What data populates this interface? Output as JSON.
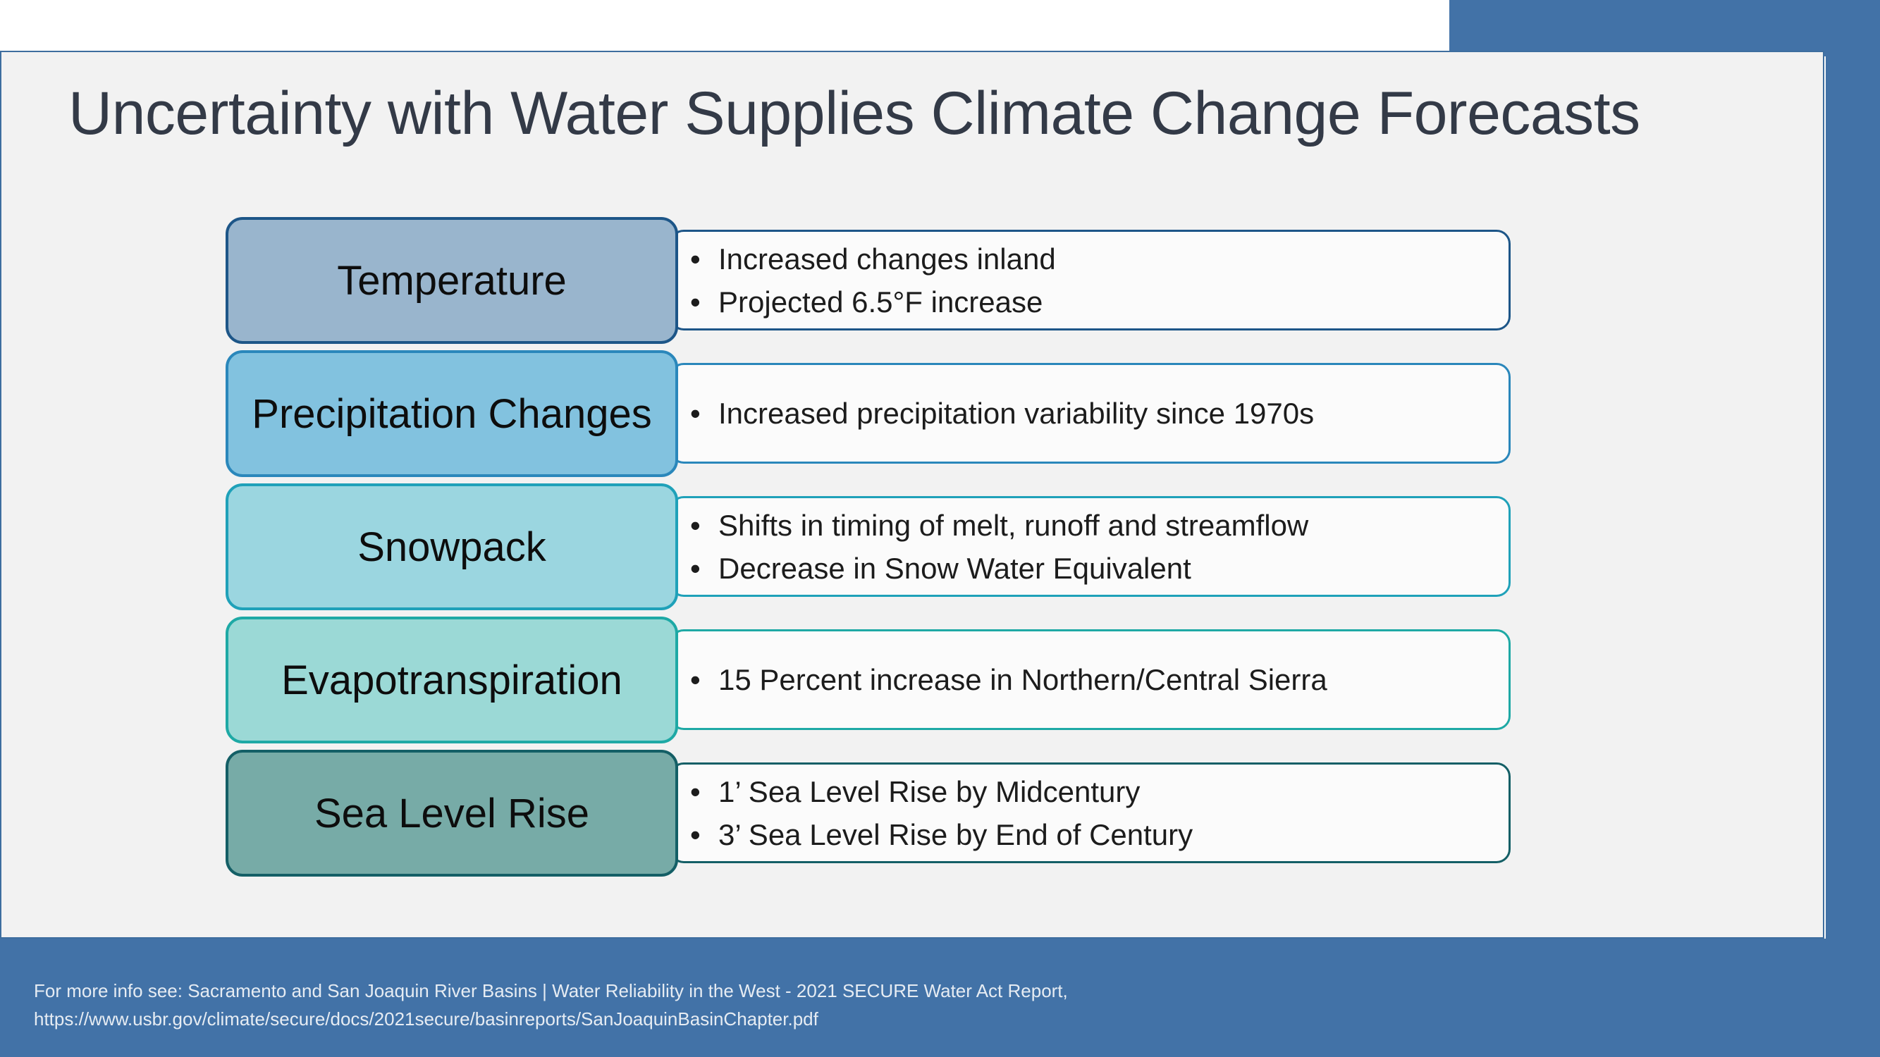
{
  "slide": {
    "title": "Uncertainty with Water Supplies Climate Change Forecasts"
  },
  "rows": [
    {
      "label": "Temperature",
      "bullets": [
        "Increased changes inland",
        "Projected 6.5°F increase"
      ],
      "fill": "#99b5cd",
      "border": "#1d5688"
    },
    {
      "label": "Precipitation Changes",
      "bullets": [
        "Increased precipitation variability since 1970s"
      ],
      "fill": "#82c2df",
      "border": "#2a87bb"
    },
    {
      "label": "Snowpack",
      "bullets": [
        "Shifts in timing of melt, runoff and streamflow",
        "Decrease in Snow Water Equivalent"
      ],
      "fill": "#9bd6e0",
      "border": "#1fa1b9"
    },
    {
      "label": "Evapotranspiration",
      "bullets": [
        "15 Percent increase in Northern/Central Sierra"
      ],
      "fill": "#9bd9d6",
      "border": "#1ea9a5"
    },
    {
      "label": "Sea Level Rise",
      "bullets": [
        "1’ Sea Level Rise by Midcentury",
        "3’ Sea Level Rise by End of Century"
      ],
      "fill": "#77aba7",
      "border": "#145f66"
    }
  ],
  "footer": {
    "line1": "For more info see: Sacramento and San Joaquin River Basins | Water Reliability in the West - 2021 SECURE Water Act Report,",
    "line2": "https://www.usbr.gov/climate/secure/docs/2021secure/basinreports/SanJoaquinBasinChapter.pdf"
  },
  "colors": {
    "accent_blue": "#4272a7",
    "panel_background": "#f2f2f2",
    "title_text": "#333a47"
  }
}
